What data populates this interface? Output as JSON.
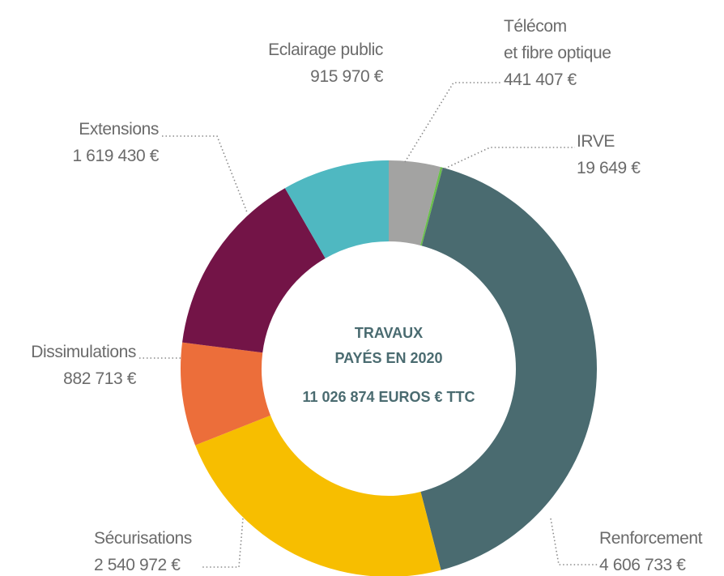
{
  "chart_data": {
    "type": "donut",
    "center_title": "TRAVAUX\nPAYÉS EN 2020",
    "total_label": "11 026 874 EUROS € TTC",
    "categories": [
      "Télécom\net fibre optique",
      "IRVE",
      "Renforcement",
      "Sécurisations",
      "Dissimulations",
      "Extensions",
      "Eclairage public"
    ],
    "values": [
      441407,
      19649,
      4606733,
      2540972,
      882713,
      1619430,
      915970
    ],
    "value_labels": [
      "441 407 €",
      "19 649 €",
      "4 606 733 €",
      "2 540 972 €",
      "882 713 €",
      "1 619 430 €",
      "915 970 €"
    ],
    "colors": [
      "#a3a3a2",
      "#6abf4b",
      "#4a6b70",
      "#f7be00",
      "#ec6e3a",
      "#731447",
      "#4fb8c1"
    ]
  }
}
